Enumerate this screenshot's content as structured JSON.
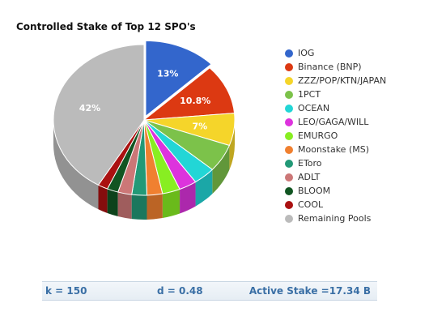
{
  "chart_data": {
    "type": "pie",
    "title": "Controlled Stake of Top 12 SPO's",
    "slices": [
      {
        "name": "IOG",
        "value": 13,
        "label": "13%",
        "color": "#3366cc"
      },
      {
        "name": "Binance (BNP)",
        "value": 10.8,
        "label": "10.8%",
        "color": "#dc3912"
      },
      {
        "name": "ZZZ/POP/KTN/JAPAN",
        "value": 7,
        "label": "7%",
        "color": "#f5d52a"
      },
      {
        "name": "1PCT",
        "value": 6,
        "label": "",
        "color": "#7cc24a"
      },
      {
        "name": "OCEAN",
        "value": 4,
        "label": "",
        "color": "#22d6d6"
      },
      {
        "name": "LEO/GAGA/WILL",
        "value": 3.2,
        "label": "",
        "color": "#dd33dd"
      },
      {
        "name": "EMURGO",
        "value": 3.2,
        "label": "",
        "color": "#88ee22"
      },
      {
        "name": "Moonstake (MS)",
        "value": 2.8,
        "label": "",
        "color": "#f08030"
      },
      {
        "name": "EToro",
        "value": 2.7,
        "label": "",
        "color": "#229977"
      },
      {
        "name": "ADLT",
        "value": 2.5,
        "label": "",
        "color": "#cc7777"
      },
      {
        "name": "BLOOM",
        "value": 2,
        "label": "",
        "color": "#115522"
      },
      {
        "name": "COOL",
        "value": 1.8,
        "label": "",
        "color": "#aa1111"
      },
      {
        "name": "Remaining Pools",
        "value": 42,
        "label": "42%",
        "color": "#bbbbbb"
      }
    ],
    "legend_position": "right"
  },
  "info": {
    "k": "k = 150",
    "d": "d = 0.48",
    "active_stake": "Active Stake =17.34 B"
  }
}
